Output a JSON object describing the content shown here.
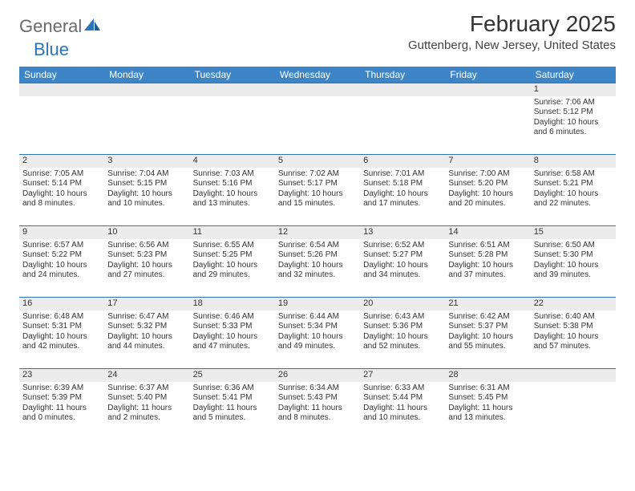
{
  "logo": {
    "general": "General",
    "blue": "Blue"
  },
  "title": "February 2025",
  "location": "Guttenberg, New Jersey, United States",
  "colors": {
    "header_bg": "#3d85c6",
    "header_text": "#ffffff",
    "week_border": "#2b74b8",
    "daynum_bg": "#ececec",
    "body_text": "#333333",
    "logo_gray": "#6a6a6a",
    "logo_blue": "#2b74b8"
  },
  "weekdays": [
    "Sunday",
    "Monday",
    "Tuesday",
    "Wednesday",
    "Thursday",
    "Friday",
    "Saturday"
  ],
  "weeks": [
    [
      {
        "n": "",
        "sunrise": "",
        "sunset": "",
        "daylight": ""
      },
      {
        "n": "",
        "sunrise": "",
        "sunset": "",
        "daylight": ""
      },
      {
        "n": "",
        "sunrise": "",
        "sunset": "",
        "daylight": ""
      },
      {
        "n": "",
        "sunrise": "",
        "sunset": "",
        "daylight": ""
      },
      {
        "n": "",
        "sunrise": "",
        "sunset": "",
        "daylight": ""
      },
      {
        "n": "",
        "sunrise": "",
        "sunset": "",
        "daylight": ""
      },
      {
        "n": "1",
        "sunrise": "Sunrise: 7:06 AM",
        "sunset": "Sunset: 5:12 PM",
        "daylight": "Daylight: 10 hours and 6 minutes."
      }
    ],
    [
      {
        "n": "2",
        "sunrise": "Sunrise: 7:05 AM",
        "sunset": "Sunset: 5:14 PM",
        "daylight": "Daylight: 10 hours and 8 minutes."
      },
      {
        "n": "3",
        "sunrise": "Sunrise: 7:04 AM",
        "sunset": "Sunset: 5:15 PM",
        "daylight": "Daylight: 10 hours and 10 minutes."
      },
      {
        "n": "4",
        "sunrise": "Sunrise: 7:03 AM",
        "sunset": "Sunset: 5:16 PM",
        "daylight": "Daylight: 10 hours and 13 minutes."
      },
      {
        "n": "5",
        "sunrise": "Sunrise: 7:02 AM",
        "sunset": "Sunset: 5:17 PM",
        "daylight": "Daylight: 10 hours and 15 minutes."
      },
      {
        "n": "6",
        "sunrise": "Sunrise: 7:01 AM",
        "sunset": "Sunset: 5:18 PM",
        "daylight": "Daylight: 10 hours and 17 minutes."
      },
      {
        "n": "7",
        "sunrise": "Sunrise: 7:00 AM",
        "sunset": "Sunset: 5:20 PM",
        "daylight": "Daylight: 10 hours and 20 minutes."
      },
      {
        "n": "8",
        "sunrise": "Sunrise: 6:58 AM",
        "sunset": "Sunset: 5:21 PM",
        "daylight": "Daylight: 10 hours and 22 minutes."
      }
    ],
    [
      {
        "n": "9",
        "sunrise": "Sunrise: 6:57 AM",
        "sunset": "Sunset: 5:22 PM",
        "daylight": "Daylight: 10 hours and 24 minutes."
      },
      {
        "n": "10",
        "sunrise": "Sunrise: 6:56 AM",
        "sunset": "Sunset: 5:23 PM",
        "daylight": "Daylight: 10 hours and 27 minutes."
      },
      {
        "n": "11",
        "sunrise": "Sunrise: 6:55 AM",
        "sunset": "Sunset: 5:25 PM",
        "daylight": "Daylight: 10 hours and 29 minutes."
      },
      {
        "n": "12",
        "sunrise": "Sunrise: 6:54 AM",
        "sunset": "Sunset: 5:26 PM",
        "daylight": "Daylight: 10 hours and 32 minutes."
      },
      {
        "n": "13",
        "sunrise": "Sunrise: 6:52 AM",
        "sunset": "Sunset: 5:27 PM",
        "daylight": "Daylight: 10 hours and 34 minutes."
      },
      {
        "n": "14",
        "sunrise": "Sunrise: 6:51 AM",
        "sunset": "Sunset: 5:28 PM",
        "daylight": "Daylight: 10 hours and 37 minutes."
      },
      {
        "n": "15",
        "sunrise": "Sunrise: 6:50 AM",
        "sunset": "Sunset: 5:30 PM",
        "daylight": "Daylight: 10 hours and 39 minutes."
      }
    ],
    [
      {
        "n": "16",
        "sunrise": "Sunrise: 6:48 AM",
        "sunset": "Sunset: 5:31 PM",
        "daylight": "Daylight: 10 hours and 42 minutes."
      },
      {
        "n": "17",
        "sunrise": "Sunrise: 6:47 AM",
        "sunset": "Sunset: 5:32 PM",
        "daylight": "Daylight: 10 hours and 44 minutes."
      },
      {
        "n": "18",
        "sunrise": "Sunrise: 6:46 AM",
        "sunset": "Sunset: 5:33 PM",
        "daylight": "Daylight: 10 hours and 47 minutes."
      },
      {
        "n": "19",
        "sunrise": "Sunrise: 6:44 AM",
        "sunset": "Sunset: 5:34 PM",
        "daylight": "Daylight: 10 hours and 49 minutes."
      },
      {
        "n": "20",
        "sunrise": "Sunrise: 6:43 AM",
        "sunset": "Sunset: 5:36 PM",
        "daylight": "Daylight: 10 hours and 52 minutes."
      },
      {
        "n": "21",
        "sunrise": "Sunrise: 6:42 AM",
        "sunset": "Sunset: 5:37 PM",
        "daylight": "Daylight: 10 hours and 55 minutes."
      },
      {
        "n": "22",
        "sunrise": "Sunrise: 6:40 AM",
        "sunset": "Sunset: 5:38 PM",
        "daylight": "Daylight: 10 hours and 57 minutes."
      }
    ],
    [
      {
        "n": "23",
        "sunrise": "Sunrise: 6:39 AM",
        "sunset": "Sunset: 5:39 PM",
        "daylight": "Daylight: 11 hours and 0 minutes."
      },
      {
        "n": "24",
        "sunrise": "Sunrise: 6:37 AM",
        "sunset": "Sunset: 5:40 PM",
        "daylight": "Daylight: 11 hours and 2 minutes."
      },
      {
        "n": "25",
        "sunrise": "Sunrise: 6:36 AM",
        "sunset": "Sunset: 5:41 PM",
        "daylight": "Daylight: 11 hours and 5 minutes."
      },
      {
        "n": "26",
        "sunrise": "Sunrise: 6:34 AM",
        "sunset": "Sunset: 5:43 PM",
        "daylight": "Daylight: 11 hours and 8 minutes."
      },
      {
        "n": "27",
        "sunrise": "Sunrise: 6:33 AM",
        "sunset": "Sunset: 5:44 PM",
        "daylight": "Daylight: 11 hours and 10 minutes."
      },
      {
        "n": "28",
        "sunrise": "Sunrise: 6:31 AM",
        "sunset": "Sunset: 5:45 PM",
        "daylight": "Daylight: 11 hours and 13 minutes."
      },
      {
        "n": "",
        "sunrise": "",
        "sunset": "",
        "daylight": ""
      }
    ]
  ]
}
